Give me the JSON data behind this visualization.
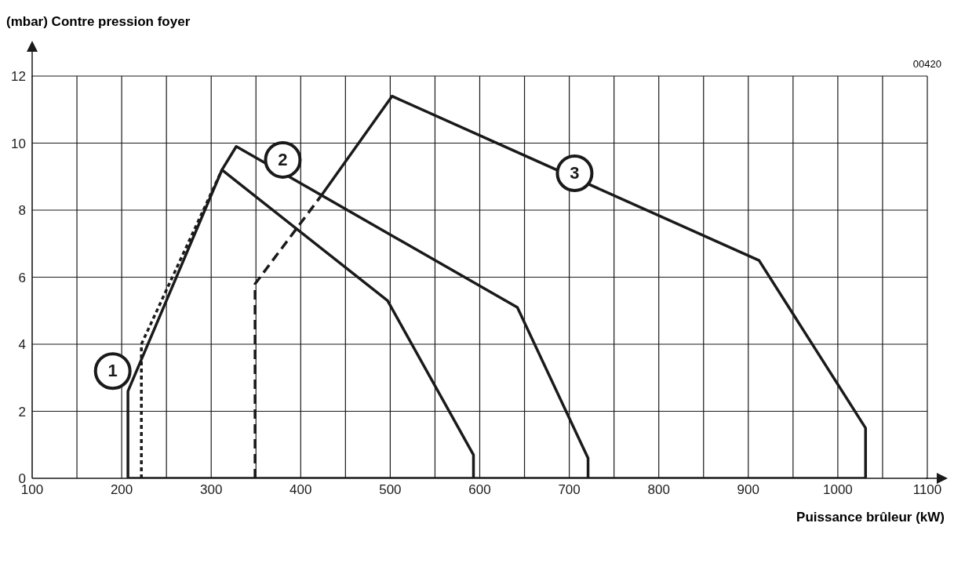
{
  "chart_data": {
    "type": "line",
    "xlabel": "Puissance brûleur (kW)",
    "ylabel": "(mbar) Contre pression foyer",
    "xlim": [
      100,
      1100
    ],
    "ylim": [
      0,
      12
    ],
    "xticks": [
      100,
      {
        "value": 150,
        "label": null
      },
      200,
      {
        "value": 250,
        "label": null
      },
      300,
      {
        "value": 350,
        "label": null
      },
      400,
      {
        "value": 450,
        "label": null
      },
      500,
      {
        "value": 550,
        "label": null
      },
      600,
      {
        "value": 650,
        "label": null
      },
      700,
      {
        "value": 750,
        "label": null
      },
      800,
      {
        "value": 850,
        "label": null
      },
      900,
      {
        "value": 950,
        "label": null
      },
      1000,
      {
        "value": 1050,
        "label": null
      },
      1100
    ],
    "yticks": [
      0,
      2,
      4,
      6,
      8,
      10,
      12
    ],
    "grid": true,
    "legend": false,
    "marker": "none",
    "series": [
      {
        "color": "#1a1a1a",
        "line_style": "solid",
        "x": [
          207,
          207,
          312,
          497,
          593,
          593
        ],
        "values": [
          0,
          2.6,
          9.2,
          5.3,
          0.7,
          0
        ]
      },
      {
        "color": "#1a1a1a",
        "line_style": "solid",
        "x": [
          312,
          328,
          642,
          721,
          721
        ],
        "values": [
          9.2,
          9.9,
          5.1,
          0.6,
          0
        ]
      },
      {
        "color": "#1a1a1a",
        "line_style": "dotted",
        "x": [
          222,
          222,
          312
        ],
        "values": [
          0,
          4.0,
          9.2
        ]
      },
      {
        "color": "#1a1a1a",
        "line_style": "dashed",
        "x": [
          349,
          349,
          422
        ],
        "values": [
          0,
          5.8,
          8.4
        ]
      },
      {
        "color": "#1a1a1a",
        "line_style": "solid",
        "x": [
          422,
          502,
          912,
          1031,
          1031
        ],
        "values": [
          8.4,
          11.4,
          6.5,
          1.5,
          0
        ]
      },
      {
        "color": "#1a1a1a",
        "line_style": "solid",
        "x": [
          207,
          1031
        ],
        "values": [
          0,
          0
        ]
      }
    ],
    "annotations": [
      {
        "text": "1",
        "x": 190,
        "y": 3.2
      },
      {
        "text": "2",
        "x": 380,
        "y": 9.5
      },
      {
        "text": "3",
        "x": 706,
        "y": 9.1
      },
      "00420"
    ]
  }
}
